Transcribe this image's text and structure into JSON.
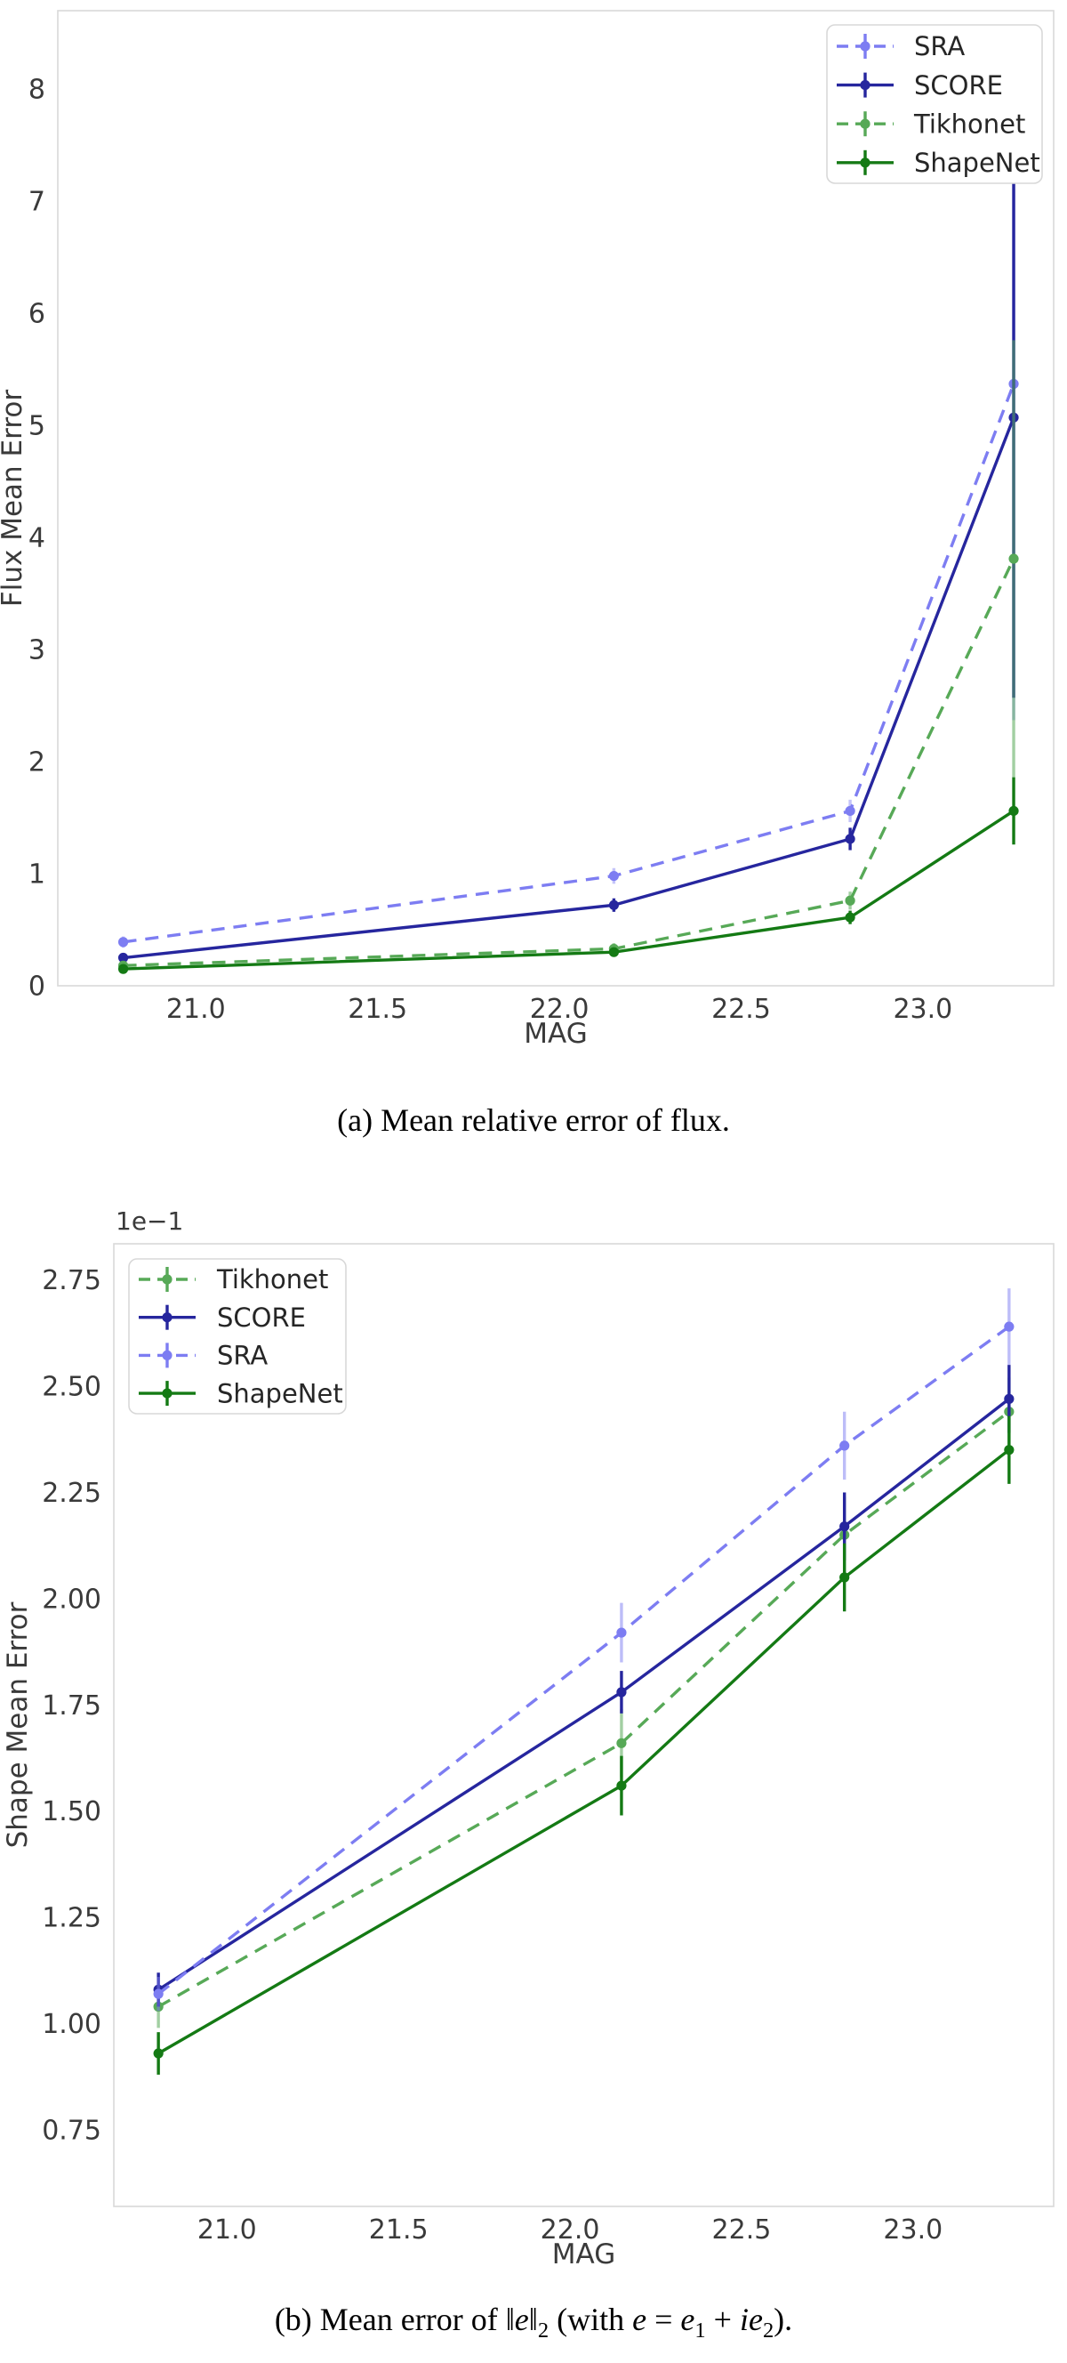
{
  "figure": {
    "caption_a": "(a) Mean relative error of flux.",
    "caption_b_segments": [
      {
        "t": "(b) Mean error of "
      },
      {
        "t": "‖"
      },
      {
        "t": "e",
        "italic": true
      },
      {
        "t": "‖"
      },
      {
        "t": "2",
        "sub": true
      },
      {
        "t": " (with "
      },
      {
        "t": "e",
        "italic": true
      },
      {
        "t": " = "
      },
      {
        "t": "e",
        "italic": true
      },
      {
        "t": "1",
        "sub": true
      },
      {
        "t": " + "
      },
      {
        "t": "ie",
        "italic": true
      },
      {
        "t": "2",
        "sub": true
      },
      {
        "t": ")."
      }
    ]
  },
  "colors": {
    "sra": "#7d7df2",
    "score": "#26269e",
    "tikhonet": "#57a957",
    "shapenet": "#147a14",
    "spine": "#d9d9d9",
    "tick_text": "#3a3a3a",
    "legend_border": "#d8d8d8"
  },
  "chart_data": [
    {
      "type": "line",
      "panel": "a",
      "title": "",
      "xlabel": "MAG",
      "ylabel": "Flux Mean Error",
      "grid": false,
      "legend_position": "top-right",
      "x": [
        20.8,
        22.15,
        22.8,
        23.25
      ],
      "xtick_values": [
        21.0,
        21.5,
        22.0,
        22.5,
        23.0
      ],
      "xtick_labels": [
        "21.0",
        "21.5",
        "22.0",
        "22.5",
        "23.0"
      ],
      "ytick_values": [
        0,
        1,
        2,
        3,
        4,
        5,
        6,
        7,
        8
      ],
      "ytick_labels": [
        "0",
        "1",
        "2",
        "3",
        "4",
        "5",
        "6",
        "7",
        "8"
      ],
      "xlim": [
        20.62,
        23.36
      ],
      "ylim": [
        0,
        8.7
      ],
      "series": [
        {
          "name": "SRA",
          "color": "#7d7df2",
          "dashed": true,
          "err_opacity": 0.45,
          "values": [
            0.39,
            0.98,
            1.56,
            5.37
          ],
          "yerr": [
            0.05,
            0.07,
            0.1,
            3.0
          ]
        },
        {
          "name": "SCORE",
          "color": "#26269e",
          "dashed": false,
          "err_opacity": 1,
          "values": [
            0.25,
            0.72,
            1.31,
            5.07
          ],
          "yerr": [
            0.04,
            0.06,
            0.1,
            2.5
          ]
        },
        {
          "name": "Tikhonet",
          "color": "#57a957",
          "dashed": true,
          "err_opacity": 0.55,
          "values": [
            0.18,
            0.33,
            0.76,
            3.81
          ],
          "yerr": [
            0.03,
            0.05,
            0.08,
            1.95
          ]
        },
        {
          "name": "ShapeNet",
          "color": "#147a14",
          "dashed": false,
          "err_opacity": 1,
          "values": [
            0.15,
            0.3,
            0.61,
            1.56
          ],
          "yerr": [
            0.03,
            0.04,
            0.06,
            0.3
          ]
        }
      ]
    },
    {
      "type": "line",
      "panel": "b",
      "title": "",
      "offset_label": "1e−1",
      "xlabel": "MAG",
      "ylabel": "Shape Mean Error",
      "grid": false,
      "legend_position": "top-left",
      "x": [
        20.8,
        22.15,
        22.8,
        23.28
      ],
      "xtick_values": [
        21.0,
        21.5,
        22.0,
        22.5,
        23.0
      ],
      "xtick_labels": [
        "21.0",
        "21.5",
        "22.0",
        "22.5",
        "23.0"
      ],
      "ytick_values": [
        0.75,
        1.0,
        1.25,
        1.5,
        1.75,
        2.0,
        2.25,
        2.5,
        2.75
      ],
      "ytick_labels": [
        "0.75",
        "1.00",
        "1.25",
        "1.50",
        "1.75",
        "2.00",
        "2.25",
        "2.50",
        "2.75"
      ],
      "xlim": [
        20.67,
        23.41
      ],
      "ylim": [
        0.57,
        2.835
      ],
      "series": [
        {
          "name": "Tikhonet",
          "color": "#57a957",
          "dashed": true,
          "err_opacity": 0.55,
          "values": [
            1.04,
            1.66,
            2.15,
            2.44
          ],
          "yerr": [
            0.05,
            0.08,
            0.09,
            0.08
          ]
        },
        {
          "name": "SCORE",
          "color": "#26269e",
          "dashed": false,
          "err_opacity": 1,
          "values": [
            1.08,
            1.78,
            2.17,
            2.47
          ],
          "yerr": [
            0.04,
            0.05,
            0.08,
            0.08
          ]
        },
        {
          "name": "SRA",
          "color": "#7d7df2",
          "dashed": true,
          "err_opacity": 0.5,
          "values": [
            1.07,
            1.92,
            2.36,
            2.64
          ],
          "yerr": [
            0.04,
            0.07,
            0.08,
            0.09
          ]
        },
        {
          "name": "ShapeNet",
          "color": "#147a14",
          "dashed": false,
          "err_opacity": 1,
          "values": [
            0.93,
            1.56,
            2.05,
            2.35
          ],
          "yerr": [
            0.05,
            0.07,
            0.08,
            0.08
          ]
        }
      ]
    }
  ]
}
